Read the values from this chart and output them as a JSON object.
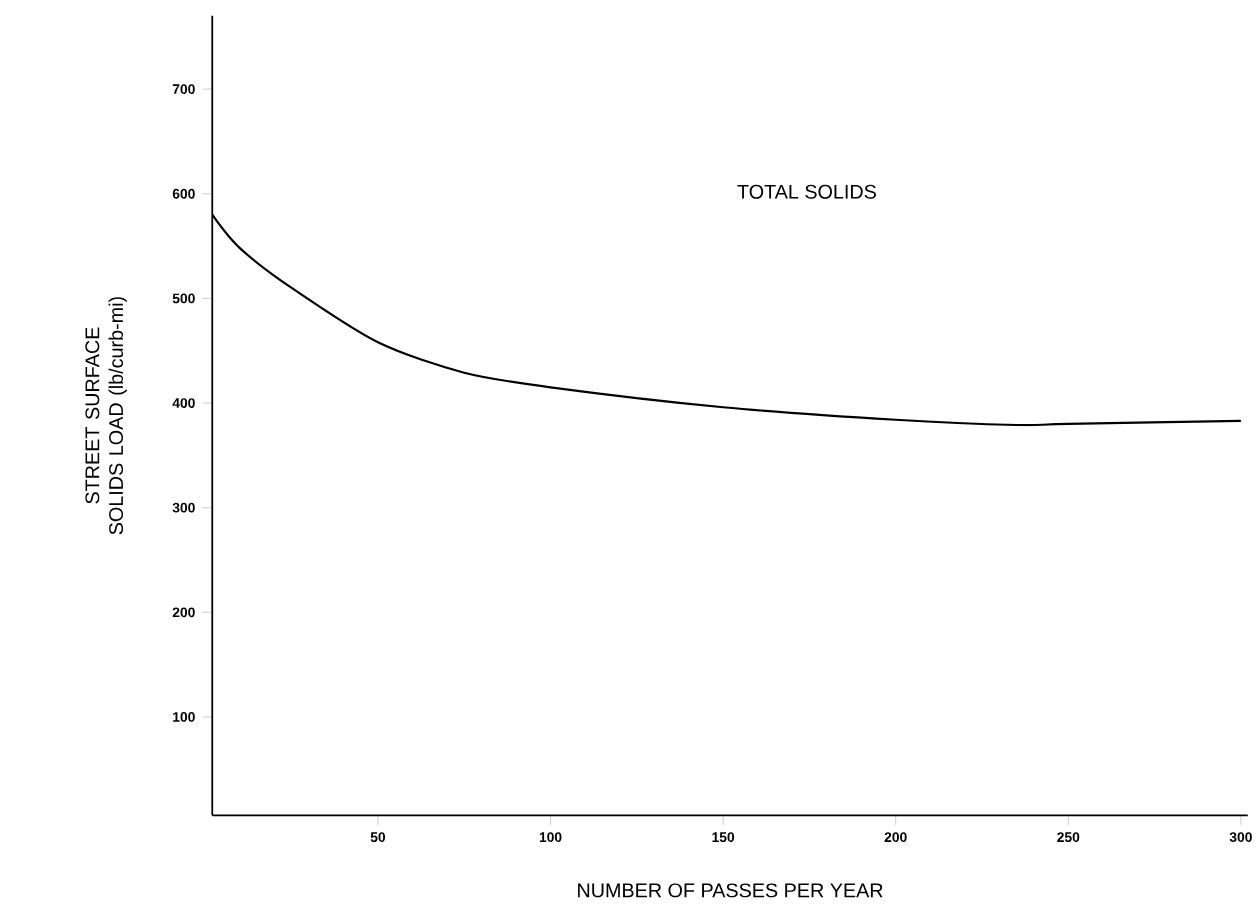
{
  "chart_data": {
    "type": "line",
    "xlabel": "NUMBER OF PASSES PER YEAR",
    "ylabel": "STREET SURFACE SOLIDS LOAD (lb/curb-mi)",
    "x": [
      2,
      10,
      25,
      50,
      75,
      100,
      150,
      200,
      235,
      250,
      300
    ],
    "series": [
      {
        "name": "TOTAL SOLIDS",
        "color": "#000000",
        "values": [
          580,
          548,
          510,
          458,
          429,
          415,
          396,
          384,
          379,
          380,
          383
        ]
      }
    ],
    "xlim": [
      2,
      302
    ],
    "ylim": [
      6,
      770
    ],
    "xticks": [
      50,
      100,
      150,
      200,
      250,
      300
    ],
    "yticks": [
      100,
      200,
      300,
      400,
      500,
      600,
      700
    ],
    "grid": false,
    "legend": false,
    "marker": "none",
    "line_style": "solid"
  }
}
